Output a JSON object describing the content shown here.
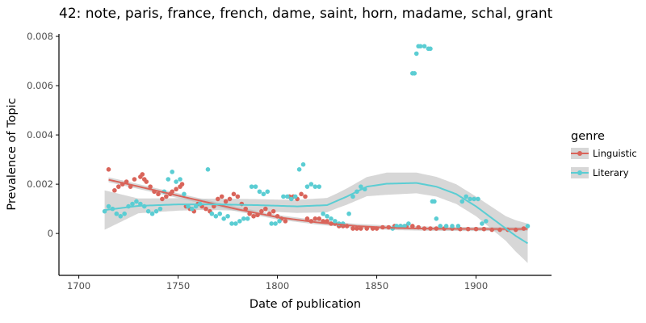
{
  "chart_data": {
    "type": "scatter",
    "title": "42: note, paris, france, french, dame, saint, horn, madame, schal, grant",
    "xlabel": "Date of publication",
    "ylabel": "Prevalence of Topic",
    "xlim": [
      1690,
      1938
    ],
    "ylim": [
      -0.0017,
      0.0081
    ],
    "x_ticks": [
      1700,
      1750,
      1800,
      1850,
      1900
    ],
    "y_ticks": [
      0,
      0.002,
      0.004,
      0.006,
      0.008
    ],
    "y_tick_labels": [
      "0",
      "0.002",
      "0.004",
      "0.006",
      "0.008"
    ],
    "grid": false,
    "legend": {
      "title": "genre",
      "placement": "right"
    },
    "colors": {
      "Linguistic": "#d9645a",
      "Literary": "#5bcdd3",
      "band": "#bdbdbd"
    },
    "series": [
      {
        "name": "Linguistic",
        "points": [
          [
            1715,
            0.0026
          ],
          [
            1718,
            0.00175
          ],
          [
            1720,
            0.0019
          ],
          [
            1722,
            0.002
          ],
          [
            1724,
            0.0021
          ],
          [
            1726,
            0.0019
          ],
          [
            1728,
            0.0022
          ],
          [
            1731,
            0.0023
          ],
          [
            1732,
            0.0024
          ],
          [
            1733,
            0.0022
          ],
          [
            1734,
            0.0021
          ],
          [
            1736,
            0.0019
          ],
          [
            1738,
            0.0017
          ],
          [
            1740,
            0.0016
          ],
          [
            1742,
            0.0014
          ],
          [
            1744,
            0.0015
          ],
          [
            1746,
            0.0016
          ],
          [
            1747,
            0.0017
          ],
          [
            1749,
            0.0018
          ],
          [
            1751,
            0.0019
          ],
          [
            1752,
            0.002
          ],
          [
            1754,
            0.0011
          ],
          [
            1756,
            0.001
          ],
          [
            1758,
            0.0009
          ],
          [
            1760,
            0.0012
          ],
          [
            1762,
            0.0011
          ],
          [
            1764,
            0.001
          ],
          [
            1766,
            0.0009
          ],
          [
            1768,
            0.0011
          ],
          [
            1770,
            0.0014
          ],
          [
            1772,
            0.0015
          ],
          [
            1774,
            0.0013
          ],
          [
            1776,
            0.0014
          ],
          [
            1778,
            0.0016
          ],
          [
            1780,
            0.0015
          ],
          [
            1782,
            0.0012
          ],
          [
            1784,
            0.001
          ],
          [
            1786,
            0.0008
          ],
          [
            1788,
            0.0007
          ],
          [
            1790,
            0.00075
          ],
          [
            1792,
            0.0009
          ],
          [
            1794,
            0.001
          ],
          [
            1796,
            0.0008
          ],
          [
            1798,
            0.0009
          ],
          [
            1800,
            0.0007
          ],
          [
            1802,
            0.0006
          ],
          [
            1804,
            0.0005
          ],
          [
            1806,
            0.0015
          ],
          [
            1808,
            0.0015
          ],
          [
            1810,
            0.0014
          ],
          [
            1812,
            0.0016
          ],
          [
            1814,
            0.0015
          ],
          [
            1815,
            0.0006
          ],
          [
            1817,
            0.0005
          ],
          [
            1819,
            0.0006
          ],
          [
            1821,
            0.0006
          ],
          [
            1823,
            0.0005
          ],
          [
            1825,
            0.0005
          ],
          [
            1827,
            0.0004
          ],
          [
            1829,
            0.0004
          ],
          [
            1831,
            0.0003
          ],
          [
            1833,
            0.0003
          ],
          [
            1835,
            0.0003
          ],
          [
            1838,
            0.0002
          ],
          [
            1840,
            0.0002
          ],
          [
            1842,
            0.0002
          ],
          [
            1845,
            0.0002
          ],
          [
            1848,
            0.0002
          ],
          [
            1850,
            0.0002
          ],
          [
            1853,
            0.00025
          ],
          [
            1856,
            0.00025
          ],
          [
            1859,
            0.0003
          ],
          [
            1862,
            0.0003
          ],
          [
            1865,
            0.0003
          ],
          [
            1868,
            0.0003
          ],
          [
            1871,
            0.00025
          ],
          [
            1874,
            0.0002
          ],
          [
            1877,
            0.0002
          ],
          [
            1880,
            0.0002
          ],
          [
            1884,
            0.0002
          ],
          [
            1888,
            0.0002
          ],
          [
            1892,
            0.00018
          ],
          [
            1896,
            0.00018
          ],
          [
            1900,
            0.00018
          ],
          [
            1904,
            0.00018
          ],
          [
            1908,
            0.00015
          ],
          [
            1912,
            0.00015
          ],
          [
            1916,
            0.00015
          ],
          [
            1920,
            0.00015
          ],
          [
            1924,
            0.0002
          ]
        ],
        "trend": [
          [
            1715,
            0.00218
          ],
          [
            1725,
            0.002
          ],
          [
            1740,
            0.00172
          ],
          [
            1760,
            0.00135
          ],
          [
            1780,
            0.00098
          ],
          [
            1800,
            0.00066
          ],
          [
            1820,
            0.00045
          ],
          [
            1840,
            0.0003
          ],
          [
            1860,
            0.00022
          ],
          [
            1880,
            0.00019
          ],
          [
            1900,
            0.00018
          ],
          [
            1926,
            0.00018
          ]
        ]
      },
      {
        "name": "Literary",
        "points": [
          [
            1713,
            0.0009
          ],
          [
            1715,
            0.0011
          ],
          [
            1717,
            0.001
          ],
          [
            1719,
            0.0008
          ],
          [
            1721,
            0.0007
          ],
          [
            1723,
            0.0008
          ],
          [
            1725,
            0.0011
          ],
          [
            1727,
            0.0012
          ],
          [
            1729,
            0.0013
          ],
          [
            1731,
            0.0012
          ],
          [
            1733,
            0.0011
          ],
          [
            1735,
            0.0009
          ],
          [
            1737,
            0.0008
          ],
          [
            1739,
            0.0009
          ],
          [
            1741,
            0.001
          ],
          [
            1743,
            0.0017
          ],
          [
            1745,
            0.0022
          ],
          [
            1747,
            0.0025
          ],
          [
            1749,
            0.0021
          ],
          [
            1751,
            0.0022
          ],
          [
            1753,
            0.0016
          ],
          [
            1755,
            0.0011
          ],
          [
            1757,
            0.001
          ],
          [
            1759,
            0.0011
          ],
          [
            1761,
            0.0012
          ],
          [
            1765,
            0.0026
          ],
          [
            1767,
            0.0008
          ],
          [
            1769,
            0.0007
          ],
          [
            1771,
            0.0008
          ],
          [
            1773,
            0.0006
          ],
          [
            1775,
            0.0007
          ],
          [
            1777,
            0.0004
          ],
          [
            1779,
            0.0004
          ],
          [
            1781,
            0.0005
          ],
          [
            1783,
            0.0006
          ],
          [
            1785,
            0.0006
          ],
          [
            1787,
            0.0019
          ],
          [
            1789,
            0.0019
          ],
          [
            1791,
            0.0017
          ],
          [
            1793,
            0.0016
          ],
          [
            1795,
            0.0017
          ],
          [
            1797,
            0.0004
          ],
          [
            1799,
            0.0004
          ],
          [
            1801,
            0.0005
          ],
          [
            1803,
            0.0015
          ],
          [
            1805,
            0.0015
          ],
          [
            1807,
            0.0014
          ],
          [
            1809,
            0.0015
          ],
          [
            1811,
            0.0026
          ],
          [
            1813,
            0.0028
          ],
          [
            1815,
            0.0019
          ],
          [
            1817,
            0.002
          ],
          [
            1819,
            0.0019
          ],
          [
            1821,
            0.0019
          ],
          [
            1823,
            0.0008
          ],
          [
            1825,
            0.0007
          ],
          [
            1827,
            0.0006
          ],
          [
            1829,
            0.0005
          ],
          [
            1831,
            0.0004
          ],
          [
            1833,
            0.0004
          ],
          [
            1836,
            0.0008
          ],
          [
            1838,
            0.0015
          ],
          [
            1840,
            0.0017
          ],
          [
            1842,
            0.0019
          ],
          [
            1844,
            0.0018
          ],
          [
            1858,
            0.0002
          ],
          [
            1860,
            0.0003
          ],
          [
            1862,
            0.0003
          ],
          [
            1864,
            0.0003
          ],
          [
            1866,
            0.0004
          ],
          [
            1868,
            0.0065
          ],
          [
            1869,
            0.0065
          ],
          [
            1870,
            0.0073
          ],
          [
            1871,
            0.0076
          ],
          [
            1872,
            0.0076
          ],
          [
            1874,
            0.0076
          ],
          [
            1876,
            0.0075
          ],
          [
            1877,
            0.0075
          ],
          [
            1878,
            0.0013
          ],
          [
            1879,
            0.0013
          ],
          [
            1880,
            0.0006
          ],
          [
            1882,
            0.0003
          ],
          [
            1885,
            0.0003
          ],
          [
            1888,
            0.0003
          ],
          [
            1891,
            0.0003
          ],
          [
            1893,
            0.0013
          ],
          [
            1895,
            0.0015
          ],
          [
            1897,
            0.0014
          ],
          [
            1899,
            0.0014
          ],
          [
            1901,
            0.0014
          ],
          [
            1903,
            0.0004
          ],
          [
            1905,
            0.0005
          ],
          [
            1926,
            0.0003
          ]
        ],
        "trend": [
          [
            1713,
            0.00095
          ],
          [
            1730,
            0.00112
          ],
          [
            1750,
            0.00118
          ],
          [
            1770,
            0.00118
          ],
          [
            1790,
            0.00115
          ],
          [
            1810,
            0.0011
          ],
          [
            1825,
            0.00115
          ],
          [
            1835,
            0.0015
          ],
          [
            1845,
            0.0019
          ],
          [
            1855,
            0.00202
          ],
          [
            1870,
            0.00205
          ],
          [
            1880,
            0.0019
          ],
          [
            1890,
            0.0016
          ],
          [
            1900,
            0.0011
          ],
          [
            1910,
            0.0005
          ],
          [
            1920,
            -0.0001
          ],
          [
            1926,
            -0.0004
          ]
        ],
        "band_width": [
          [
            1713,
            0.0008
          ],
          [
            1730,
            0.0003
          ],
          [
            1760,
            0.00023
          ],
          [
            1800,
            0.00025
          ],
          [
            1830,
            0.0003
          ],
          [
            1855,
            0.00045
          ],
          [
            1880,
            0.0004
          ],
          [
            1900,
            0.0004
          ],
          [
            1915,
            0.0005
          ],
          [
            1926,
            0.0008
          ]
        ]
      }
    ]
  }
}
